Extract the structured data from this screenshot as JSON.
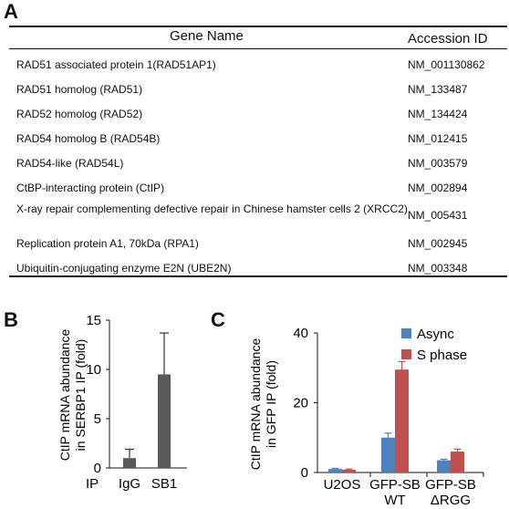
{
  "panels": {
    "a": "A",
    "b": "B",
    "c": "C"
  },
  "table": {
    "headers": {
      "gene": "Gene Name",
      "accession": "Accession ID"
    },
    "rows": [
      {
        "gene": "RAD51 associated protein 1(RAD51AP1)",
        "accession": "NM_001130862"
      },
      {
        "gene": "RAD51 homolog (RAD51)",
        "accession": "NM_133487"
      },
      {
        "gene": "RAD52 homolog (RAD52)",
        "accession": "NM_134424"
      },
      {
        "gene": "RAD54 homolog B (RAD54B)",
        "accession": "NM_012415"
      },
      {
        "gene": "RAD54-like (RAD54L)",
        "accession": "NM_003579"
      },
      {
        "gene": "CtBP-interacting protein (CtIP)",
        "accession": "NM_002894"
      },
      {
        "gene": "X-ray repair complementing defective repair in Chinese hamster cells 2 (XRCC2)",
        "accession": "NM_005431"
      },
      {
        "gene": "Replication protein A1, 70kDa (RPA1)",
        "accession": "NM_002945"
      },
      {
        "gene": "Ubiquitin-conjugating enzyme E2N (UBE2N)",
        "accession": "NM_003348"
      }
    ]
  },
  "chart_data": [
    {
      "type": "bar",
      "ylabel": "CtIP mRNA abundance in SERBP1 IP (fold)",
      "ylabel_lines": [
        "CtIP mRNA abundance",
        "in SERBP1 IP (fold)"
      ],
      "ylim": [
        0,
        15
      ],
      "yticks": [
        "0",
        "5",
        "10",
        "15"
      ],
      "row_label": "IP",
      "categories": [
        "IgG",
        "SB1"
      ],
      "values": [
        1.0,
        9.5
      ],
      "errors": [
        0.9,
        4.2
      ],
      "color": "#595959"
    },
    {
      "type": "bar",
      "ylabel": "CtIP mRNA abundance in GFP IP (fold)",
      "ylabel_lines": [
        "CtIP mRNA abundance",
        "in GFP IP (fold)"
      ],
      "ylim": [
        0,
        40
      ],
      "yticks": [
        "0",
        "20",
        "40"
      ],
      "categories": [
        {
          "line1": "U2OS",
          "line2": ""
        },
        {
          "line1": "GFP-SB",
          "line2": "WT"
        },
        {
          "line1": "GFP-SB",
          "line2": "ΔRGG"
        }
      ],
      "legend_position": "top-right",
      "series": [
        {
          "name": "Async",
          "color": "#4f81bd",
          "values": [
            1.0,
            10.0,
            3.5
          ],
          "errors": [
            0.2,
            1.3,
            0.3
          ]
        },
        {
          "name": "S phase",
          "color": "#c0504d",
          "values": [
            0.8,
            29.5,
            6.0
          ],
          "errors": [
            0.2,
            2.3,
            0.7
          ]
        }
      ]
    }
  ]
}
